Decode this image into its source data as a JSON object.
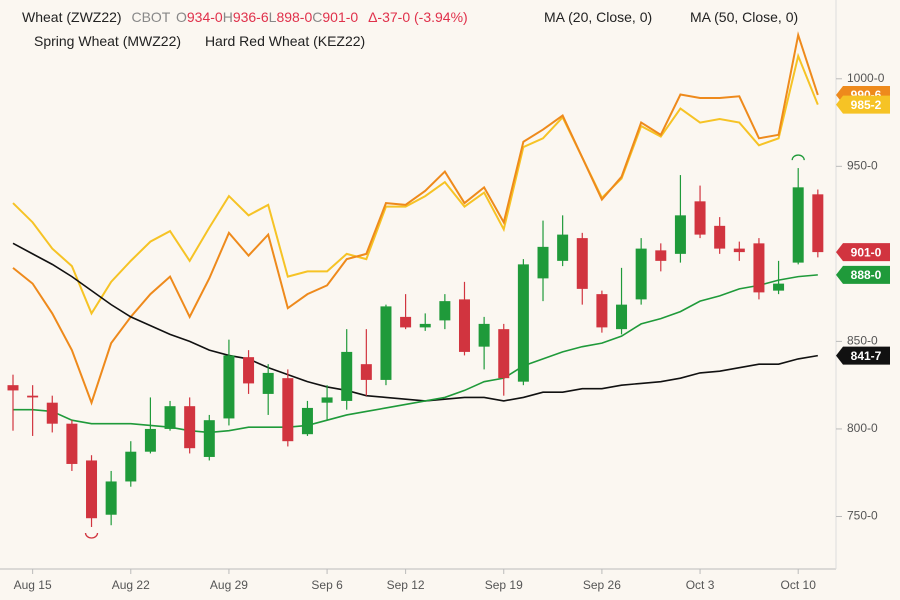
{
  "chart_data": {
    "type": "candlestick",
    "title": "Wheat (ZWZ22)",
    "exchange": "CBOT",
    "ohlc_header": [
      {
        "label": "O",
        "value": "934-0"
      },
      {
        "label": "H",
        "value": "936-6"
      },
      {
        "label": "L",
        "value": "898-0"
      },
      {
        "label": "C",
        "value": "901-0"
      }
    ],
    "change": "Δ-37-0 (-3.94%)",
    "categories": [
      null,
      "Aug 15",
      null,
      null,
      null,
      null,
      "Aug 22",
      null,
      null,
      null,
      null,
      "Aug 29",
      null,
      null,
      null,
      null,
      "Sep 6",
      null,
      null,
      null,
      "Sep 12",
      null,
      null,
      null,
      null,
      "Sep 19",
      null,
      null,
      null,
      null,
      "Sep 26",
      null,
      null,
      null,
      null,
      "Oct 3",
      null,
      null,
      null,
      null,
      "Oct 10",
      null
    ],
    "open": [
      825,
      819,
      815,
      803,
      782,
      751,
      770,
      787,
      800,
      813,
      784,
      806,
      841,
      820,
      829,
      797,
      815,
      816,
      837,
      828,
      864,
      858,
      862,
      874,
      847,
      857,
      827,
      886,
      896,
      909,
      877,
      857,
      874,
      902,
      900,
      930,
      916,
      903,
      906,
      879,
      895,
      934
    ],
    "high": [
      831,
      825,
      819,
      805,
      785,
      776,
      793,
      818,
      816,
      818,
      808,
      851,
      845,
      837,
      834,
      816,
      825,
      857,
      857,
      871,
      877,
      866,
      877,
      884,
      864,
      860,
      897,
      919,
      922,
      912,
      879,
      892,
      909,
      906,
      945,
      939,
      921,
      907,
      909,
      896,
      949,
      936.75
    ],
    "low": [
      799,
      796,
      798,
      776,
      744,
      745,
      767,
      786,
      799,
      786,
      782,
      802,
      820,
      808,
      790,
      796,
      805,
      811,
      819,
      825,
      857,
      856,
      857,
      842,
      834,
      819,
      825,
      873,
      893,
      871,
      855,
      854,
      871,
      890,
      895,
      909,
      900,
      896,
      874,
      877,
      894,
      898
    ],
    "close": [
      822,
      818,
      803,
      780,
      749,
      770,
      787,
      800,
      813,
      789,
      805,
      842,
      826,
      832,
      793,
      812,
      818,
      844,
      828,
      870,
      858,
      860,
      873,
      844,
      860,
      829,
      894,
      904,
      911,
      880,
      858,
      871,
      903,
      896,
      922,
      911,
      903,
      901,
      878,
      883,
      938,
      901
    ],
    "up_color": "#1f9a3a",
    "down_color": "#d1343f",
    "close_label": "901-0",
    "overlays": [
      {
        "name": "MA (20, Close, 0)",
        "color": "#1f9a3a",
        "last_label": "888-0",
        "values": [
          811,
          811,
          810,
          805,
          803,
          803,
          803,
          802,
          801,
          799,
          798,
          799,
          801,
          801,
          801,
          802,
          805,
          808,
          810,
          812,
          814,
          816,
          818,
          822,
          827,
          829,
          836,
          840,
          844,
          847,
          849,
          853,
          860,
          863,
          867,
          873,
          876,
          880,
          882,
          885,
          887,
          888
        ]
      },
      {
        "name": "MA (50, Close, 0)",
        "color": "#111111",
        "last_label": "841-7",
        "values": [
          906,
          900,
          894,
          887,
          879,
          871,
          864,
          859,
          854,
          850,
          845,
          842,
          840,
          835,
          831,
          827,
          824,
          822,
          819,
          818,
          817,
          816,
          817,
          818,
          818,
          816,
          818,
          821,
          821,
          823,
          823,
          825,
          826,
          827,
          829,
          832,
          833,
          835,
          837,
          837,
          840,
          841.875
        ]
      },
      {
        "name": "Spring Wheat (MWZ22)",
        "color": "#ee8a1c",
        "last_label": "990-6",
        "values": [
          892,
          883,
          866,
          845,
          815,
          849,
          864,
          877,
          887,
          864,
          886,
          912,
          899,
          911,
          869,
          877,
          882,
          897,
          900,
          929,
          928,
          936,
          947,
          929,
          938,
          918,
          964,
          971,
          979,
          955,
          931,
          944,
          975,
          968,
          991,
          989,
          989,
          990,
          966,
          968,
          1025,
          990.75
        ]
      },
      {
        "name": "Hard Red Wheat (KEZ22)",
        "color": "#f6c325",
        "last_label": "985-2",
        "values": [
          929,
          918,
          903,
          893,
          866,
          884,
          896,
          907,
          913,
          896,
          915,
          933,
          922,
          928,
          887,
          890,
          890,
          900,
          897,
          927,
          927,
          933,
          941,
          927,
          935,
          914,
          961,
          966,
          978,
          955,
          932,
          943,
          973,
          967,
          983,
          975,
          977,
          975,
          962,
          966,
          1013,
          985.25
        ]
      }
    ],
    "ylim": [
      720,
      1045
    ],
    "yticks": [
      {
        "value": 750,
        "label": "750-0"
      },
      {
        "value": 800,
        "label": "800-0"
      },
      {
        "value": 850,
        "label": "850-0"
      },
      {
        "value": 950,
        "label": "950-0"
      },
      {
        "value": 1000,
        "label": "1000-0"
      }
    ]
  }
}
